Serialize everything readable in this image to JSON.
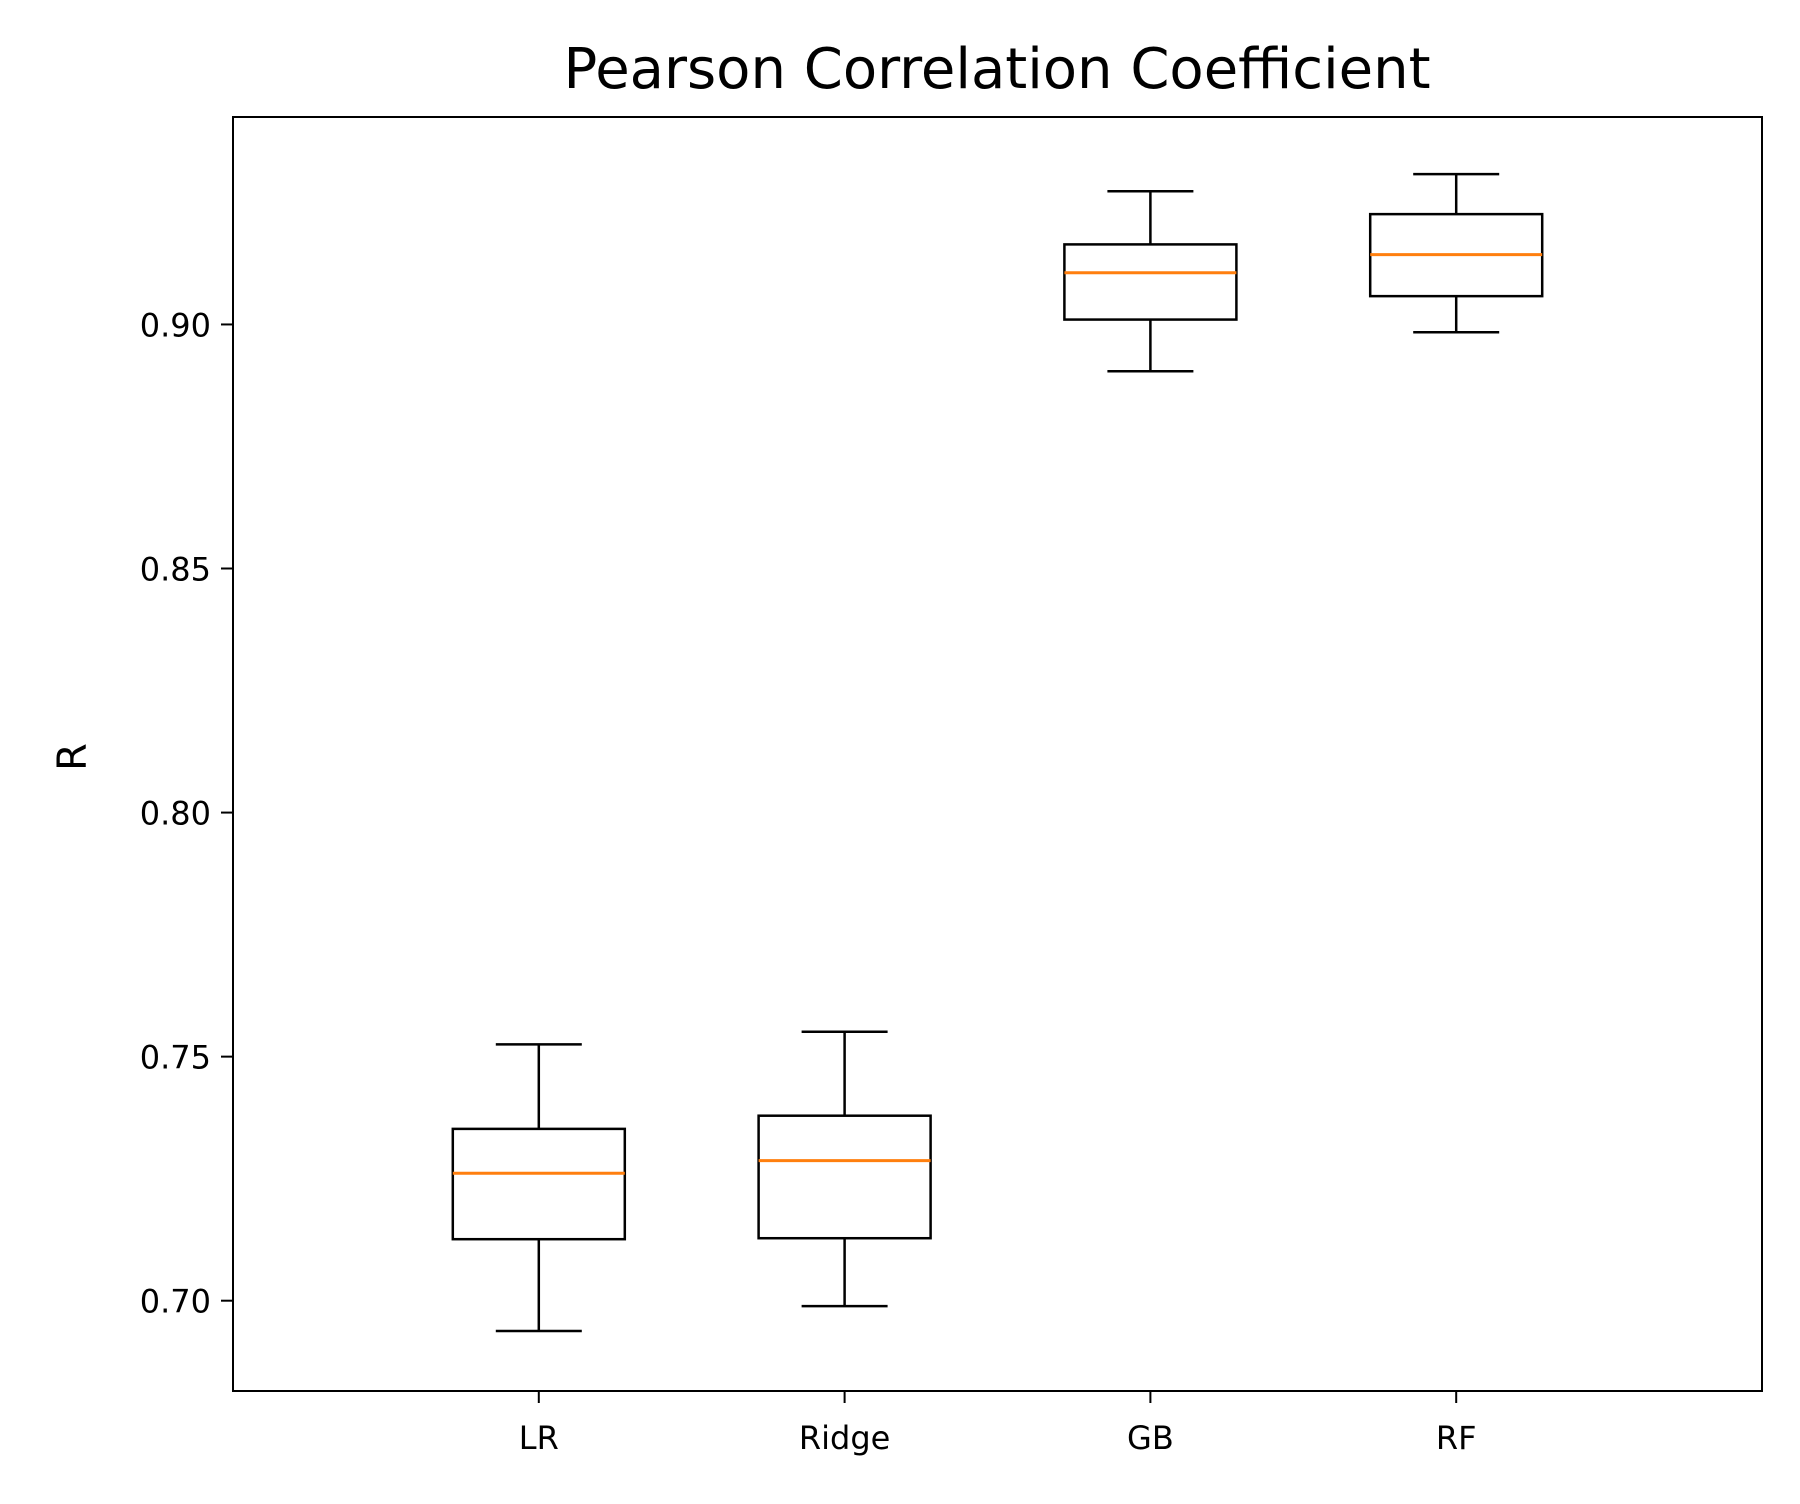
{
  "chart_data": {
    "type": "box",
    "title": "Pearson Correlation Coefficient",
    "xlabel": "",
    "ylabel": "R",
    "ylim": [
      0.6815,
      0.9425
    ],
    "yticks": [
      0.7,
      0.75,
      0.8,
      0.85,
      0.9
    ],
    "ytick_labels": [
      "0.70",
      "0.75",
      "0.80",
      "0.85",
      "0.90"
    ],
    "categories": [
      "LR",
      "Ridge",
      "GB",
      "RF"
    ],
    "boxes": [
      {
        "whisker_low": 0.6938,
        "q1": 0.7126,
        "median": 0.7261,
        "q3": 0.7352,
        "whisker_high": 0.7525
      },
      {
        "whisker_low": 0.6989,
        "q1": 0.7128,
        "median": 0.7287,
        "q3": 0.7379,
        "whisker_high": 0.7551
      },
      {
        "whisker_low": 0.8904,
        "q1": 0.901,
        "median": 0.9106,
        "q3": 0.9164,
        "whisker_high": 0.9273
      },
      {
        "whisker_low": 0.8984,
        "q1": 0.9058,
        "median": 0.9143,
        "q3": 0.9226,
        "whisker_high": 0.9308
      }
    ],
    "grid": false,
    "colors": {
      "box": "#000000",
      "median": "#ff7f0e",
      "axes": "#000000",
      "background": "#ffffff"
    }
  }
}
